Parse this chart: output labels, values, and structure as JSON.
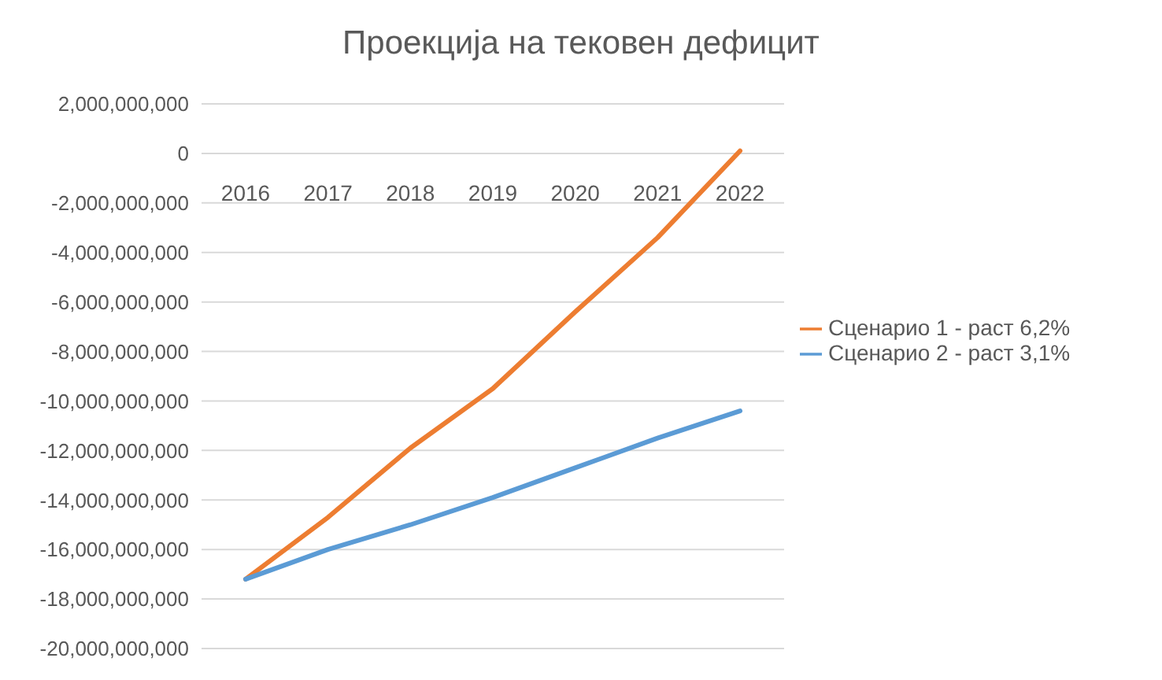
{
  "chart_data": {
    "type": "line",
    "title": "Проекција на тековен дефицит",
    "categories": [
      "2016",
      "2017",
      "2018",
      "2019",
      "2020",
      "2021",
      "2022"
    ],
    "series": [
      {
        "name": "Сценарио 1 - раст 6,2%",
        "color": "#ed7d31",
        "values": [
          -17200000000,
          -14700000000,
          -11900000000,
          -9500000000,
          -6400000000,
          -3400000000,
          100000000
        ]
      },
      {
        "name": "Сценарио 2 - раст 3,1%",
        "color": "#5b9bd5",
        "values": [
          -17200000000,
          -16000000000,
          -15000000000,
          -13900000000,
          -12700000000,
          -11500000000,
          -10400000000
        ]
      }
    ],
    "ylim": [
      -20000000000,
      2000000000
    ],
    "yticks": [
      {
        "value": -20000000000,
        "label": "-20,000,000,000"
      },
      {
        "value": -18000000000,
        "label": "-18,000,000,000"
      },
      {
        "value": -16000000000,
        "label": "-16,000,000,000"
      },
      {
        "value": -14000000000,
        "label": "-14,000,000,000"
      },
      {
        "value": -12000000000,
        "label": "-12,000,000,000"
      },
      {
        "value": -10000000000,
        "label": "-10,000,000,000"
      },
      {
        "value": -8000000000,
        "label": "-8,000,000,000"
      },
      {
        "value": -6000000000,
        "label": "-6,000,000,000"
      },
      {
        "value": -4000000000,
        "label": "-4,000,000,000"
      },
      {
        "value": -2000000000,
        "label": "-2,000,000,000"
      },
      0,
      {
        "value": 2000000000,
        "label": "2,000,000,000"
      }
    ],
    "grid": "y",
    "legend": "right",
    "marker": "none",
    "line_style": "solid"
  }
}
